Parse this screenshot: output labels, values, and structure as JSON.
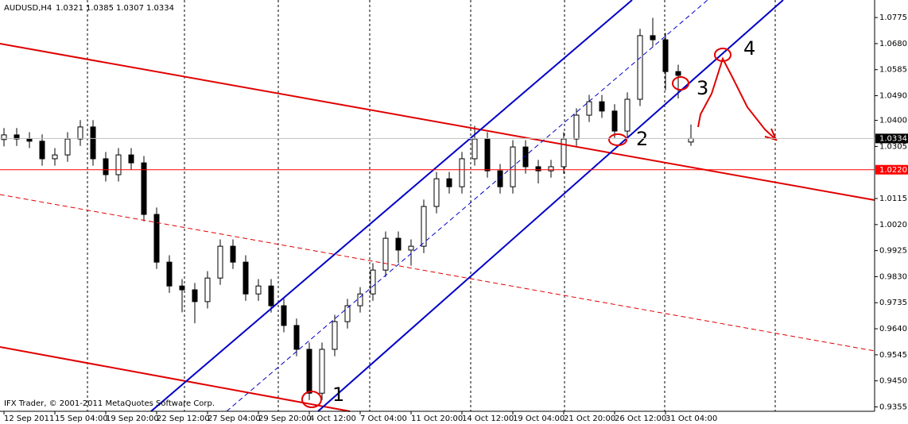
{
  "chart_data": {
    "type": "candlestick",
    "symbol": "AUDUSD,H4",
    "copyright": "IFX Trader, © 2001-2011 MetaQuotes Software Corp.",
    "categories": [
      "12 Sep 2011",
      null,
      null,
      null,
      "15 Sep 04:00",
      null,
      null,
      null,
      "19 Sep 20:00",
      null,
      null,
      null,
      "22 Sep 12:00",
      null,
      null,
      null,
      "27 Sep 04:00",
      null,
      null,
      null,
      "29 Sep 20:00",
      null,
      null,
      null,
      "4 Oct 12:00",
      null,
      null,
      null,
      "7 Oct 04:00",
      null,
      null,
      null,
      "11 Oct 20:00",
      null,
      null,
      null,
      "14 Oct 12:00",
      null,
      null,
      null,
      "19 Oct 04:00",
      null,
      null,
      null,
      "21 Oct 20:00",
      null,
      null,
      null,
      "26 Oct 12:00",
      null,
      null,
      null,
      "31 Oct 04:00",
      null,
      null
    ],
    "open": [
      1.033,
      1.0347,
      1.0332,
      1.0324,
      1.026,
      1.0274,
      1.0332,
      1.0376,
      1.026,
      1.0202,
      1.0274,
      1.0245,
      1.0057,
      0.9883,
      0.9796,
      0.9782,
      0.9739,
      0.9825,
      0.9941,
      0.9883,
      0.9767,
      0.9796,
      0.9724,
      0.9652,
      0.9565,
      0.9405,
      0.9565,
      0.9666,
      0.9724,
      0.9767,
      0.9854,
      0.997,
      0.9927,
      0.9941,
      1.0086,
      1.0187,
      1.0158,
      1.026,
      1.0332,
      1.0216,
      1.0158,
      1.0303,
      1.0231,
      1.0216,
      1.0231,
      1.0332,
      1.0419,
      1.0468,
      1.0434,
      1.0361,
      1.0477,
      1.0709,
      1.0694,
      1.0578,
      1.0321
    ],
    "high": [
      1.0372,
      1.0372,
      1.0357,
      1.0349,
      1.0299,
      1.0357,
      1.0401,
      1.0401,
      1.0285,
      1.0299,
      1.0299,
      1.027,
      1.0082,
      0.9908,
      0.9821,
      0.9807,
      0.985,
      0.9966,
      0.9966,
      0.9908,
      0.9821,
      0.9821,
      0.9749,
      0.9677,
      0.959,
      0.959,
      0.9691,
      0.9749,
      0.9792,
      0.9879,
      0.9995,
      0.9995,
      0.9966,
      1.0111,
      1.0212,
      1.0212,
      1.0285,
      1.038,
      1.0357,
      1.0241,
      1.0328,
      1.0328,
      1.0256,
      1.0256,
      1.0357,
      1.0444,
      1.0493,
      1.0493,
      1.0459,
      1.0502,
      1.0734,
      1.0774,
      1.0719,
      1.0603,
      1.0385
    ],
    "low": [
      1.0305,
      1.0307,
      1.0299,
      1.0235,
      1.0235,
      1.0249,
      1.0307,
      1.0235,
      1.0177,
      1.0177,
      1.022,
      1.0032,
      0.9858,
      0.9771,
      0.97,
      0.966,
      0.9714,
      0.98,
      0.9858,
      0.9742,
      0.9742,
      0.9699,
      0.9627,
      0.954,
      0.938,
      0.938,
      0.954,
      0.9641,
      0.9699,
      0.9742,
      0.9829,
      0.988,
      0.987,
      0.9916,
      1.0061,
      1.0133,
      1.0133,
      1.0235,
      1.0191,
      1.0133,
      1.0133,
      1.0206,
      1.017,
      1.0191,
      1.0206,
      1.0307,
      1.0394,
      1.0409,
      1.0336,
      1.0336,
      1.0452,
      1.0669,
      1.051,
      1.048,
      1.0307
    ],
    "close": [
      1.0347,
      1.0332,
      1.0324,
      1.026,
      1.0274,
      1.0332,
      1.0376,
      1.026,
      1.0202,
      1.0274,
      1.0245,
      1.0057,
      0.9883,
      0.9796,
      0.9782,
      0.9739,
      0.9825,
      0.9941,
      0.9883,
      0.9767,
      0.9796,
      0.9724,
      0.9652,
      0.9565,
      0.9405,
      0.9565,
      0.9666,
      0.9724,
      0.9767,
      0.9854,
      0.997,
      0.9927,
      0.9941,
      1.0086,
      1.0187,
      1.0158,
      1.026,
      1.0332,
      1.0216,
      1.0158,
      1.0303,
      1.0231,
      1.0216,
      1.0231,
      1.0332,
      1.0419,
      1.0468,
      1.0434,
      1.0361,
      1.0477,
      1.0709,
      1.0694,
      1.0578,
      1.0564,
      1.0334
    ],
    "ylim": [
      0.9339,
      1.0839
    ],
    "yticks": [
      {
        "value": 1.0775,
        "label": "1.0775"
      },
      {
        "value": 1.068,
        "label": "1.0680"
      },
      {
        "value": 1.0585,
        "label": "1.0585"
      },
      {
        "value": 1.049,
        "label": "1.0490"
      },
      {
        "value": 1.04,
        "label": "1.0400"
      },
      {
        "value": 1.0305,
        "label": "1.0305"
      },
      {
        "value": 1.0115,
        "label": "1.0115"
      },
      {
        "value": 1.002,
        "label": "1.0020"
      },
      {
        "value": 0.9925,
        "label": "0.9925"
      },
      {
        "value": 0.983,
        "label": "0.9830"
      },
      {
        "value": 0.9735,
        "label": "0.9735"
      },
      {
        "value": 0.964,
        "label": "0.9640"
      },
      {
        "value": 0.9545,
        "label": "0.9545"
      },
      {
        "value": 0.945,
        "label": "0.9450"
      },
      {
        "value": 0.9355,
        "label": "0.9355"
      }
    ],
    "price_label": {
      "value": 1.0334,
      "label": "1.0334"
    },
    "hline": {
      "value": 1.022,
      "label": "1.0220",
      "color": "#ff0000"
    },
    "annotations": [
      "1",
      "2",
      "3",
      "4"
    ]
  }
}
